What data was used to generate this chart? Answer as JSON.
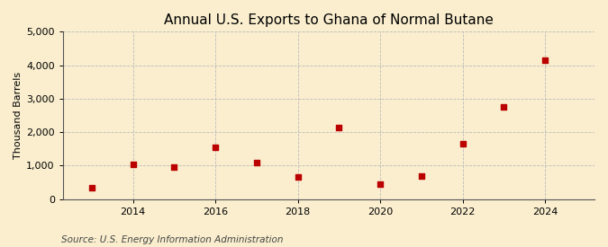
{
  "title": "Annual U.S. Exports to Ghana of Normal Butane",
  "ylabel": "Thousand Barrels",
  "source": "Source: U.S. Energy Information Administration",
  "years": [
    2013,
    2014,
    2015,
    2016,
    2017,
    2018,
    2019,
    2020,
    2021,
    2022,
    2023,
    2024
  ],
  "values": [
    350,
    1050,
    950,
    1550,
    1100,
    650,
    2150,
    450,
    700,
    1650,
    2750,
    4150
  ],
  "marker_color": "#bb0000",
  "marker": "s",
  "marker_size": 4,
  "background_color": "#faeece",
  "grid_color": "#bbbbbb",
  "ylim": [
    0,
    5000
  ],
  "yticks": [
    0,
    1000,
    2000,
    3000,
    4000,
    5000
  ],
  "xticks": [
    2014,
    2016,
    2018,
    2020,
    2022,
    2024
  ],
  "xlim": [
    2012.3,
    2025.2
  ],
  "title_fontsize": 11,
  "label_fontsize": 8,
  "tick_fontsize": 8,
  "source_fontsize": 7.5
}
